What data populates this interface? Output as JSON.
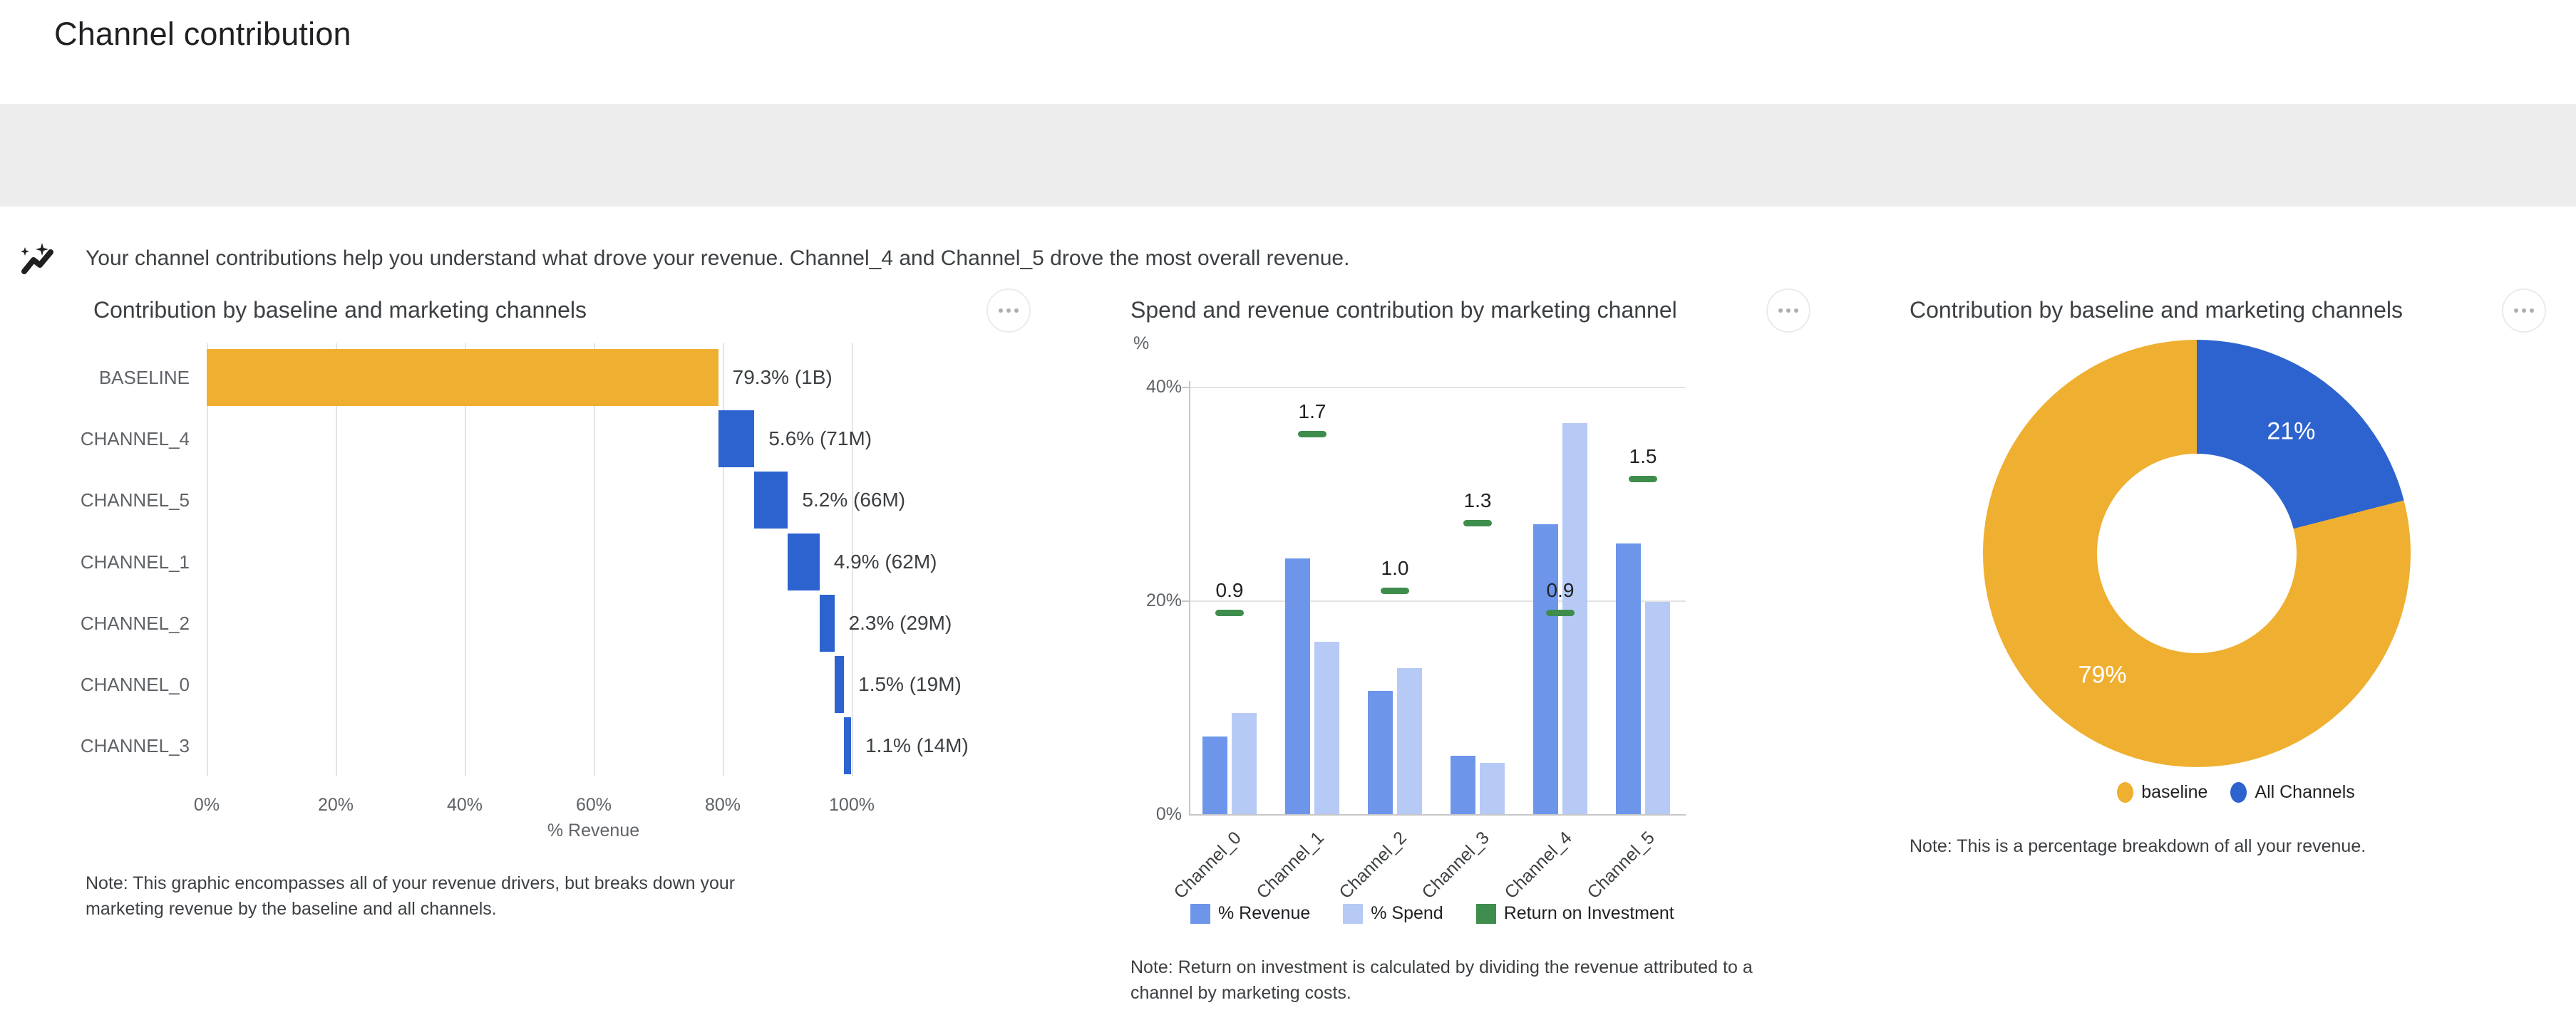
{
  "page": {
    "title": "Channel contribution"
  },
  "insight_banner": {
    "icon": "insights-sparkline-icon",
    "text": "Your channel contributions help you understand what drove your revenue. Channel_4 and Channel_5 drove the most overall revenue."
  },
  "colors": {
    "baseline_orange": "#EFAF30",
    "channel_blue": "#2D63CE",
    "revenue_blue": "#6D96EB",
    "spend_blue": "#B7CAF6",
    "roi_green": "#3E8D4D",
    "banner_bg": "#EDEDED"
  },
  "chart_data": [
    {
      "type": "bar",
      "variant": "horizontal-waterfall",
      "title": "Contribution by baseline and marketing channels",
      "xlabel": "% Revenue",
      "x_ticks": [
        "0%",
        "20%",
        "40%",
        "60%",
        "80%",
        "100%"
      ],
      "xlim": [
        0,
        100
      ],
      "grid": true,
      "categories": [
        "BASELINE",
        "CHANNEL_4",
        "CHANNEL_5",
        "CHANNEL_1",
        "CHANNEL_2",
        "CHANNEL_0",
        "CHANNEL_3"
      ],
      "values": [
        79.3,
        5.6,
        5.2,
        4.9,
        2.3,
        1.5,
        1.1
      ],
      "bar_labels": [
        "79.3% (1B)",
        "5.6% (71M)",
        "5.2% (66M)",
        "4.9% (62M)",
        "2.3% (29M)",
        "1.5% (19M)",
        "1.1% (14M)"
      ],
      "bar_colors": [
        "#EFAF30",
        "#2D63CE",
        "#2D63CE",
        "#2D63CE",
        "#2D63CE",
        "#2D63CE",
        "#2D63CE"
      ],
      "note": "Note: This graphic encompasses all of your revenue drivers, but breaks down your marketing revenue by the baseline and all channels."
    },
    {
      "type": "bar",
      "variant": "grouped-vertical-with-markers",
      "title": "Spend and revenue contribution by marketing channel",
      "ylabel": "%",
      "y_ticks": [
        "40%",
        "20%",
        "0%"
      ],
      "ylim": [
        0,
        40.7
      ],
      "grid": true,
      "categories": [
        "Channel_0",
        "Channel_1",
        "Channel_2",
        "Channel_3",
        "Channel_4",
        "Channel_5"
      ],
      "series": [
        {
          "name": "% Revenue",
          "color": "#6D96EB",
          "values": [
            7.3,
            24.0,
            11.6,
            5.5,
            27.2,
            25.4
          ]
        },
        {
          "name": "% Spend",
          "color": "#B7CAF6",
          "values": [
            9.5,
            16.2,
            13.7,
            4.8,
            36.7,
            19.9
          ]
        },
        {
          "name": "Return on Investment",
          "color": "#3E8D4D",
          "values": [
            0.9,
            1.7,
            1.0,
            1.3,
            0.9,
            1.5
          ],
          "value_labels": [
            "0.9",
            "1.7",
            "1.0",
            "1.3",
            "0.9",
            "1.5"
          ],
          "marker": "dash",
          "axis_scale_pct_per_unit": 21
        }
      ],
      "legend": [
        "% Revenue",
        "% Spend",
        "Return on Investment"
      ],
      "legend_position": "bottom",
      "x_label_rotation": -45,
      "note": "Note: Return on investment is calculated by dividing the revenue attributed to a channel by marketing costs."
    },
    {
      "type": "pie",
      "variant": "donut",
      "title": "Contribution by baseline and marketing channels",
      "slices": [
        {
          "name": "All Channels",
          "pct": 21,
          "label": "21%",
          "color": "#2D63CE"
        },
        {
          "name": "baseline",
          "pct": 79,
          "label": "79%",
          "color": "#EFAF30"
        }
      ],
      "legend": [
        {
          "name": "baseline",
          "color": "#EFAF30"
        },
        {
          "name": "All Channels",
          "color": "#2D63CE"
        }
      ],
      "legend_position": "bottom",
      "note": "Note: This is a percentage breakdown of all your revenue."
    }
  ]
}
